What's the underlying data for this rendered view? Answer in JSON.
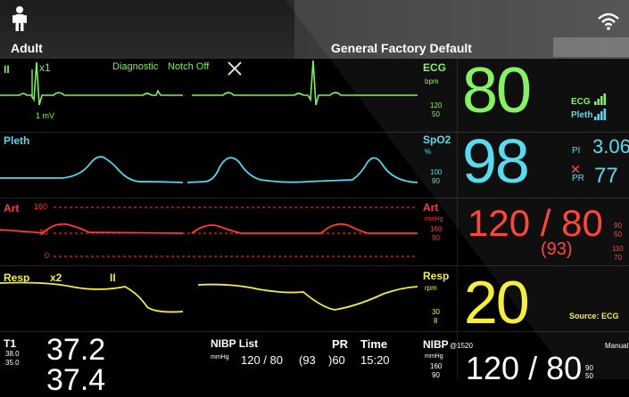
{
  "header": {
    "patient_category": "Adult",
    "profile": "General Factory Default"
  },
  "waveforms": {
    "ecg": {
      "lead": "II",
      "gain": "x1",
      "filter": "Diagnostic",
      "notch": "Notch Off",
      "cal": "1 mV",
      "label": "ECG",
      "unit": "bpm",
      "limit_hi": "120",
      "limit_lo": "50"
    },
    "pleth": {
      "label": "Pleth",
      "side_label": "SpO2",
      "unit": "%",
      "limit_hi": "100",
      "limit_lo": "90"
    },
    "art": {
      "label": "Art",
      "scale_160": "160",
      "scale_80": "80",
      "scale_0": "0",
      "side_label": "Art",
      "unit": "mmHg",
      "limit_a": "160",
      "limit_b": "90"
    },
    "resp": {
      "label": "Resp",
      "gain": "x2",
      "lead": "II",
      "side_label": "Resp",
      "unit": "rpm",
      "limit_hi": "30",
      "limit_lo": "8"
    }
  },
  "params": {
    "hr": "80",
    "spo2": "98",
    "art_sys_dia": "120 / 80",
    "art_mean": "(93)",
    "resp": "20",
    "ecg_signal_label": "ECG",
    "pleth_signal_label": "Pleth",
    "pi_label": "PI",
    "pi_value": "3.06",
    "pr_label": "PR",
    "pr_value": "77",
    "art_limit_sys_hi": "90",
    "art_limit_sys_lo": "50",
    "art_limit_dia_hi": "110",
    "art_limit_dia_lo": "70",
    "resp_source": "Source: ECG"
  },
  "bottom": {
    "temp_label": "T1",
    "temp_lim_hi": "38.0",
    "temp_lim_lo": "35.0",
    "temp_value": "37.2",
    "temp_value2": "37.4",
    "nibp_list_title": "NIBP List",
    "nibp_list_unit": "mmHg",
    "nibp_list_value": "120 / 80",
    "nibp_list_mean": "(93",
    "pr_header": "PR",
    "pr_value": ")60",
    "time_header": "Time",
    "time_value": "15:20",
    "nibp_label": "NIBP",
    "nibp_time": "@1520",
    "nibp_mode": "Manual",
    "nibp_unit": "mmHg",
    "nibp_lim_a": "160",
    "nibp_lim_b": "90",
    "nibp_value": "120 / 80",
    "nibp_lim_c": "90",
    "nibp_lim_d": "50"
  },
  "colors": {
    "ecg": "#7cf25a",
    "pleth": "#4fd8ee",
    "art": "#ff3b2f",
    "resp": "#f5ee38",
    "white": "#ffffff"
  }
}
